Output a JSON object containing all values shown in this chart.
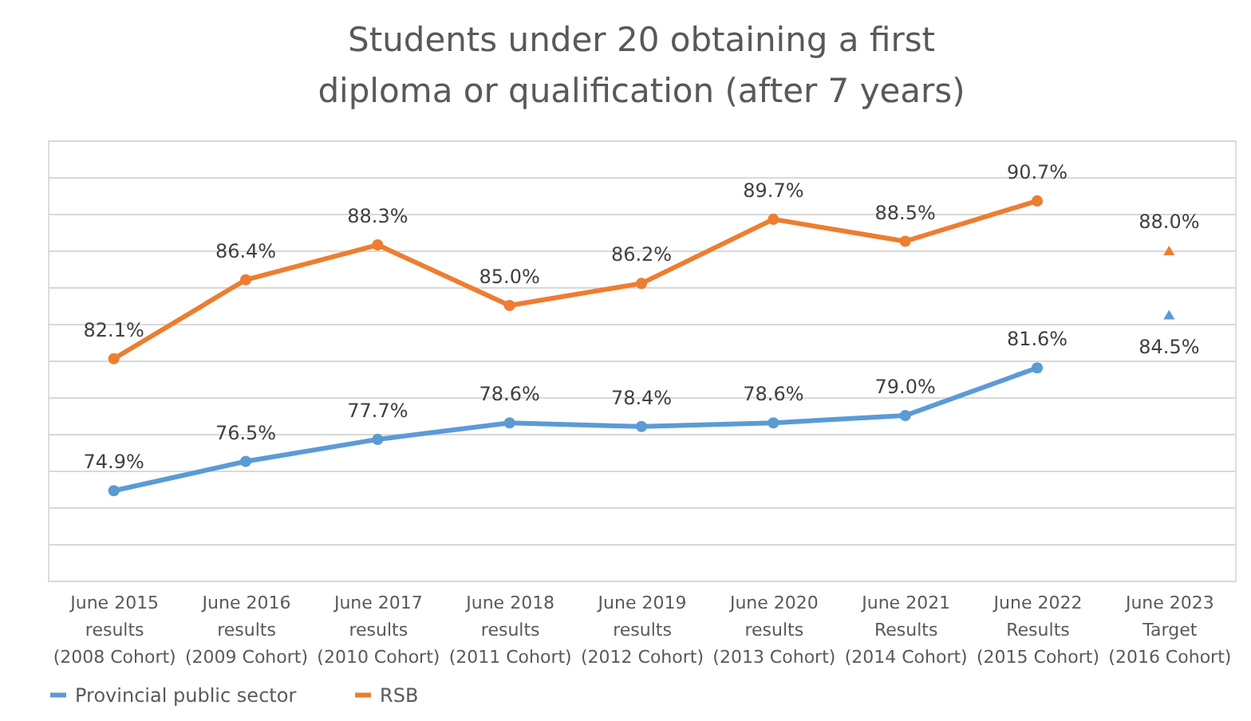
{
  "chart_data": {
    "type": "line",
    "title": "Students under 20 obtaining a first diploma or qualification (after 7 years)",
    "categories": [
      "June 2015\nresults\n(2008 Cohort)",
      "June 2016\nresults\n(2009 Cohort)",
      "June 2017\nresults\n(2010 Cohort)",
      "June 2018\nresults\n(2011 Cohort)",
      "June 2019\nresults\n(2012 Cohort)",
      "June 2020\nresults\n(2013 Cohort)",
      "June 2021\nResults\n(2014 Cohort)",
      "June 2022\nResults\n(2015 Cohort)",
      "June 2023\nTarget\n(2016 Cohort)"
    ],
    "series": [
      {
        "name": "Provincial public sector",
        "color": "#5b9bd5",
        "marker": "circle",
        "values": [
          74.9,
          76.5,
          77.7,
          78.6,
          78.4,
          78.6,
          79.0,
          81.6,
          null
        ],
        "value_labels": [
          "74.9%",
          "76.5%",
          "77.7%",
          "78.6%",
          "78.4%",
          "78.6%",
          "79.0%",
          "81.6%",
          null
        ]
      },
      {
        "name": "RSB",
        "color": "#ed7d31",
        "marker": "circle",
        "values": [
          82.1,
          86.4,
          88.3,
          85.0,
          86.2,
          89.7,
          88.5,
          90.7,
          null
        ],
        "value_labels": [
          "82.1%",
          "86.4%",
          "88.3%",
          "85.0%",
          "86.2%",
          "89.7%",
          "88.5%",
          "90.7%",
          null
        ]
      },
      {
        "type": "scatter",
        "color": "#ed7d31",
        "marker": "triangle",
        "values": [
          null,
          null,
          null,
          null,
          null,
          null,
          null,
          null,
          88.0
        ],
        "value_labels": [
          null,
          null,
          null,
          null,
          null,
          null,
          null,
          null,
          "88.0%"
        ]
      },
      {
        "type": "scatter",
        "color": "#5b9bd5",
        "marker": "triangle",
        "values": [
          null,
          null,
          null,
          null,
          null,
          null,
          null,
          null,
          84.5
        ],
        "value_labels": [
          null,
          null,
          null,
          null,
          null,
          null,
          null,
          null,
          "84.5%"
        ]
      }
    ],
    "tick_labels": "x",
    "grid": "y",
    "legend": "bottom"
  }
}
